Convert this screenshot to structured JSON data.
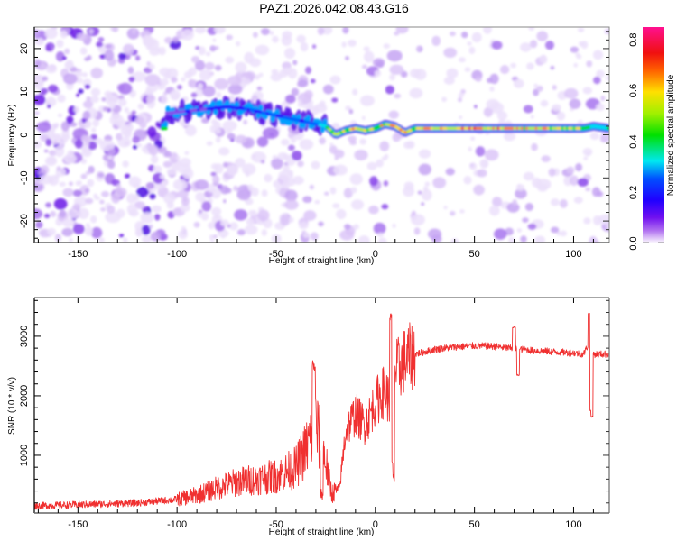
{
  "title": "PAZ1.2026.042.08.43.G16",
  "chart_data": [
    {
      "type": "heatmap",
      "name": "spectrogram",
      "xlabel": "Height of straight line (km)",
      "ylabel": "Frequency (Hz)",
      "xlim": [
        -172,
        118
      ],
      "ylim": [
        -25,
        25
      ],
      "xticks": [
        -150,
        -100,
        -50,
        0,
        50,
        100
      ],
      "xtick_labels": [
        "-150",
        "-100",
        "-50",
        "0",
        "50",
        "100"
      ],
      "yticks": [
        -20,
        -10,
        0,
        10,
        20
      ],
      "ytick_labels": [
        "-20",
        "-10",
        "0",
        "10",
        "20"
      ],
      "colorbar": {
        "label": "Normalized spectral amplitude",
        "range": [
          0.0,
          0.85
        ],
        "ticks": [
          0.0,
          0.2,
          0.4,
          0.6,
          0.8
        ],
        "tick_labels": [
          "0.0",
          "0.2",
          "0.4",
          "0.6",
          "0.8"
        ],
        "colors": [
          "#ffffff",
          "#a020f0",
          "#0000ff",
          "#00ffff",
          "#00ff00",
          "#ffff00",
          "#ff8000",
          "#ff0000",
          "#ff1493"
        ]
      },
      "ridge": {
        "description_points_x": [
          -105,
          -95,
          -85,
          -75,
          -65,
          -55,
          -45,
          -35,
          -30,
          -25,
          -20,
          -15,
          -10,
          -5,
          0,
          5,
          10,
          15,
          20,
          30,
          50,
          70,
          90,
          105,
          110,
          118
        ],
        "frequency_hz": [
          5,
          5.5,
          6,
          6.5,
          6,
          5,
          4,
          3,
          2.5,
          2,
          0,
          1,
          1.5,
          1,
          1.5,
          2.5,
          2,
          0.5,
          1.5,
          1.5,
          1.5,
          1.5,
          1.5,
          1.5,
          2,
          1.5
        ],
        "amplitude": [
          0.15,
          0.2,
          0.22,
          0.25,
          0.28,
          0.3,
          0.32,
          0.3,
          0.35,
          0.45,
          0.7,
          0.6,
          0.65,
          0.7,
          0.6,
          0.65,
          0.7,
          0.75,
          0.6,
          0.7,
          0.72,
          0.7,
          0.68,
          0.6,
          0.4,
          0.55
        ]
      }
    },
    {
      "type": "line",
      "name": "snr",
      "xlabel": "Height of straight line (km)",
      "ylabel": "SNR (10 * v/v)",
      "xlim": [
        -172,
        118
      ],
      "ylim": [
        30,
        3650
      ],
      "xticks": [
        -150,
        -100,
        -50,
        0,
        50,
        100
      ],
      "xtick_labels": [
        "-150",
        "-100",
        "-50",
        "0",
        "50",
        "100"
      ],
      "yticks": [
        1000,
        2000,
        3000
      ],
      "ytick_labels": [
        "1000",
        "2000",
        "3000"
      ],
      "line_color": "#f03030",
      "envelope_x": [
        -172,
        -150,
        -120,
        -100,
        -90,
        -80,
        -70,
        -60,
        -50,
        -40,
        -35,
        -30,
        -25,
        -22,
        -18,
        -15,
        -10,
        -5,
        0,
        5,
        8,
        10,
        15,
        20,
        30,
        40,
        50,
        60,
        70,
        80,
        90,
        100,
        105,
        108,
        110,
        115,
        118
      ],
      "envelope_y": [
        150,
        170,
        200,
        260,
        330,
        450,
        550,
        600,
        650,
        800,
        1100,
        1500,
        900,
        350,
        450,
        1400,
        1700,
        1500,
        1900,
        2100,
        1800,
        2400,
        2600,
        2700,
        2780,
        2820,
        2840,
        2830,
        2790,
        2760,
        2740,
        2720,
        2700,
        2900,
        2700,
        2700,
        2700
      ],
      "spikes": [
        {
          "x": -31,
          "y": 2500
        },
        {
          "x": -27,
          "y": 350
        },
        {
          "x": 8,
          "y": 3320
        },
        {
          "x": 9,
          "y": 600
        },
        {
          "x": 70,
          "y": 3150
        },
        {
          "x": 72,
          "y": 2350
        },
        {
          "x": 108,
          "y": 3380
        },
        {
          "x": 109,
          "y": 1650
        }
      ]
    }
  ]
}
